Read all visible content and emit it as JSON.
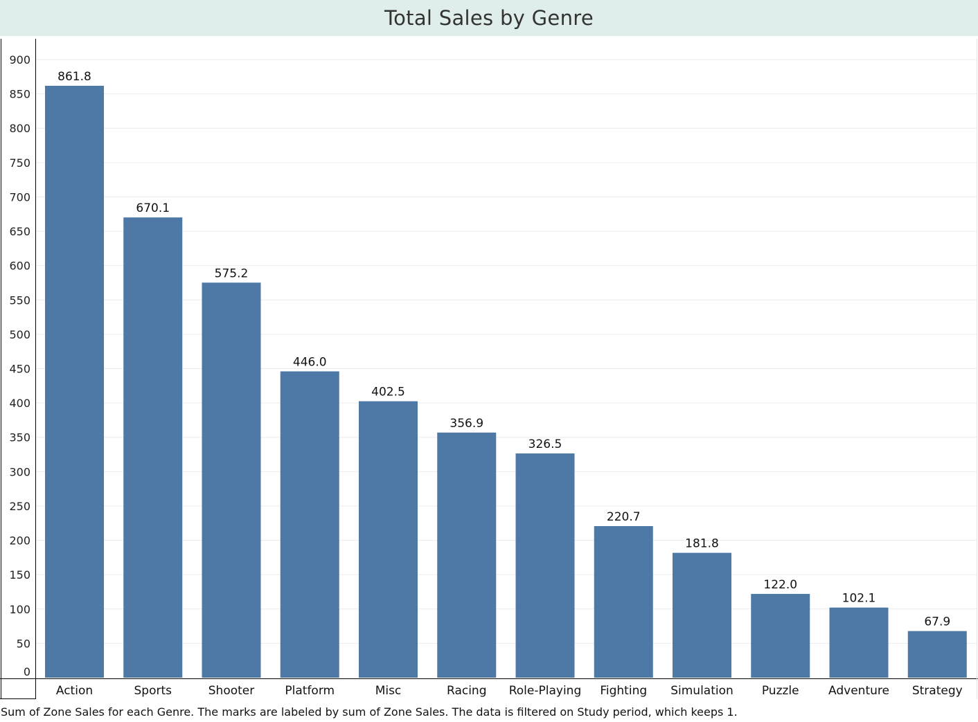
{
  "chart_data": {
    "type": "bar",
    "title": "Total Sales by Genre",
    "categories": [
      "Action",
      "Sports",
      "Shooter",
      "Platform",
      "Misc",
      "Racing",
      "Role-Playing",
      "Fighting",
      "Simulation",
      "Puzzle",
      "Adventure",
      "Strategy"
    ],
    "values": [
      861.8,
      670.1,
      575.2,
      446.0,
      402.5,
      356.9,
      326.5,
      220.7,
      181.8,
      122.0,
      102.1,
      67.9
    ],
    "value_labels": [
      "861.8",
      "670.1",
      "575.2",
      "446.0",
      "402.5",
      "356.9",
      "326.5",
      "220.7",
      "181.8",
      "122.0",
      "102.1",
      "67.9"
    ],
    "ylim": [
      0,
      900
    ],
    "yticks": [
      0,
      50,
      100,
      150,
      200,
      250,
      300,
      350,
      400,
      450,
      500,
      550,
      600,
      650,
      700,
      750,
      800,
      850,
      900
    ],
    "xlabel": "",
    "ylabel": "",
    "grid": true,
    "bar_color": "#4e79a7",
    "title_bg_color": "#dfeeea",
    "caption": "Sum of Zone Sales for each Genre.  The marks are labeled by sum of Zone Sales. The data is filtered on Study period, which keeps 1."
  }
}
